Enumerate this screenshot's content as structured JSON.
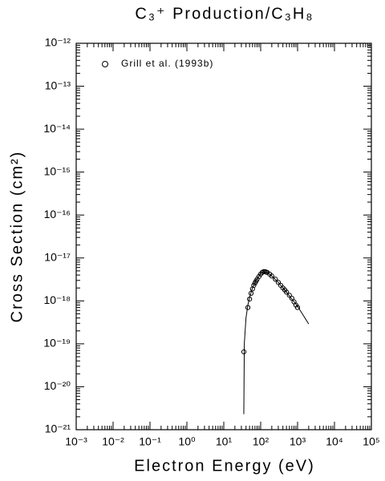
{
  "chart_data": {
    "type": "scatter",
    "title": "C₃⁺ Production/C₃H₈",
    "x_label": "Electron Energy (eV)",
    "y_label": "Cross Section (cm²)",
    "xscale": "log",
    "yscale": "log",
    "xlim": [
      0.001,
      100000
    ],
    "ylim": [
      1e-21,
      1e-12
    ],
    "xticks": [
      {
        "value": 0.001,
        "label": "10⁻³"
      },
      {
        "value": 0.01,
        "label": "10⁻²"
      },
      {
        "value": 0.1,
        "label": "10⁻¹"
      },
      {
        "value": 1,
        "label": "10⁰"
      },
      {
        "value": 10,
        "label": "10¹"
      },
      {
        "value": 100,
        "label": "10²"
      },
      {
        "value": 1000,
        "label": "10³"
      },
      {
        "value": 10000,
        "label": "10⁴"
      },
      {
        "value": 100000,
        "label": "10⁵"
      }
    ],
    "yticks": [
      {
        "value": 1e-21,
        "label": "10⁻²¹"
      },
      {
        "value": 1e-20,
        "label": "10⁻²⁰"
      },
      {
        "value": 1e-19,
        "label": "10⁻¹⁹"
      },
      {
        "value": 1e-18,
        "label": "10⁻¹⁸"
      },
      {
        "value": 1e-17,
        "label": "10⁻¹⁷"
      },
      {
        "value": 1e-16,
        "label": "10⁻¹⁶"
      },
      {
        "value": 1e-15,
        "label": "10⁻¹⁵"
      },
      {
        "value": 1e-14,
        "label": "10⁻¹⁴"
      },
      {
        "value": 1e-13,
        "label": "10⁻¹³"
      },
      {
        "value": 1e-12,
        "label": "10⁻¹²"
      }
    ],
    "minor_ticks": true,
    "legend": "upper left",
    "series": [
      {
        "name": "Grill et al. (1993b)",
        "mode": "markers",
        "color": "#000000",
        "x": [
          35,
          45,
          50,
          55,
          60,
          65,
          70,
          75,
          80,
          90,
          100,
          110,
          120,
          130,
          140,
          150,
          175,
          200,
          250,
          300,
          350,
          400,
          450,
          500,
          600,
          700,
          800,
          900,
          1000
        ],
        "values": [
          6.5e-20,
          7e-19,
          1.1e-18,
          1.5e-18,
          1.9e-18,
          2.3e-18,
          2.6e-18,
          2.9e-18,
          3.2e-18,
          3.7e-18,
          4.2e-18,
          4.6e-18,
          4.8e-18,
          4.8e-18,
          4.7e-18,
          4.6e-18,
          4.2e-18,
          3.8e-18,
          3.2e-18,
          2.7e-18,
          2.3e-18,
          2e-18,
          1.8e-18,
          1.6e-18,
          1.35e-18,
          1.15e-18,
          9.5e-19,
          8e-19,
          7e-19
        ]
      },
      {
        "mode": "line",
        "color": "#000000",
        "x": [
          34.9,
          36,
          40,
          45,
          50,
          60,
          80,
          100,
          120,
          150,
          200,
          300,
          500,
          1000,
          2000
        ],
        "values": [
          2.3e-21,
          1e-19,
          4e-19,
          8e-19,
          1.2e-18,
          2e-18,
          3.3e-18,
          4.3e-18,
          4.8e-18,
          4.6e-18,
          3.8e-18,
          2.7e-18,
          1.6e-18,
          7.5e-19,
          2.9e-19
        ]
      }
    ]
  }
}
